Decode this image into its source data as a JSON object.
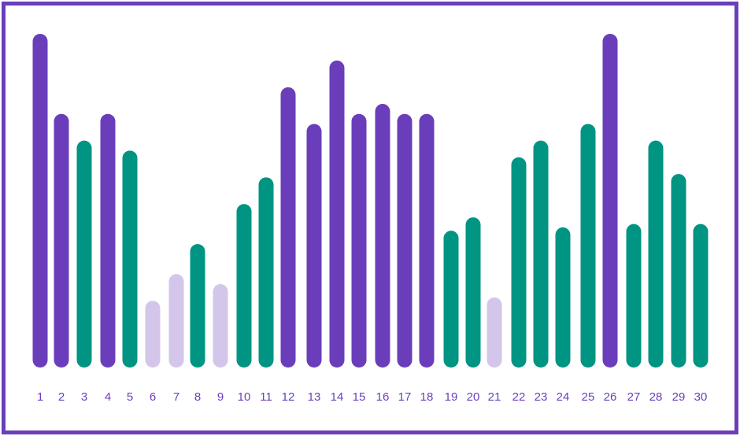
{
  "chart_data": {
    "type": "bar",
    "title": "",
    "xlabel": "",
    "ylabel": "",
    "grid": false,
    "legend": "none",
    "categories": [
      "1",
      "2",
      "3",
      "4",
      "5",
      "6",
      "7",
      "8",
      "9",
      "10",
      "11",
      "12",
      "13",
      "14",
      "15",
      "16",
      "17",
      "18",
      "19",
      "20",
      "21",
      "22",
      "23",
      "24",
      "25",
      "26",
      "27",
      "28",
      "29",
      "30"
    ],
    "values": [
      100,
      76,
      68,
      76,
      65,
      20,
      28,
      37,
      25,
      49,
      57,
      84,
      73,
      92,
      76,
      79,
      76,
      76,
      41,
      45,
      21,
      63,
      68,
      42,
      73,
      100,
      43,
      68,
      58,
      43
    ],
    "colors": [
      "#6a3ebb",
      "#6a3ebb",
      "#009483",
      "#6a3ebb",
      "#009483",
      "#d4c6ea",
      "#d4c6ea",
      "#009483",
      "#d4c6ea",
      "#009483",
      "#009483",
      "#6a3ebb",
      "#6a3ebb",
      "#6a3ebb",
      "#6a3ebb",
      "#6a3ebb",
      "#6a3ebb",
      "#6a3ebb",
      "#009483",
      "#009483",
      "#d4c6ea",
      "#009483",
      "#009483",
      "#009483",
      "#009483",
      "#6a3ebb",
      "#009483",
      "#009483",
      "#009483",
      "#009483"
    ],
    "ylim": [
      0,
      100
    ],
    "palette": {
      "purple": "#6a3ebb",
      "teal": "#009483",
      "lavender": "#d4c6ea",
      "frame": "#6a3ebb",
      "tick_label": "#6a3ebb"
    }
  }
}
